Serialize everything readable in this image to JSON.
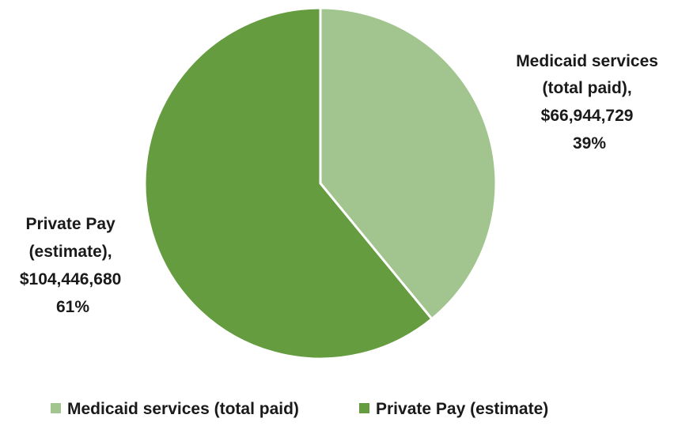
{
  "chart_data": {
    "type": "pie",
    "title": "",
    "legend_position": "bottom",
    "slices": [
      {
        "name": "Medicaid services (total paid)",
        "value": 66944729,
        "percent": 39,
        "color": "#a2c58f",
        "label_lines": [
          "Medicaid services",
          "(total paid),",
          "$66,944,729",
          "39%"
        ]
      },
      {
        "name": "Private Pay (estimate)",
        "value": 104446680,
        "percent": 61,
        "color": "#649c3f",
        "label_lines": [
          "Private Pay",
          "(estimate),",
          "$104,446,680",
          "61%"
        ]
      }
    ]
  }
}
